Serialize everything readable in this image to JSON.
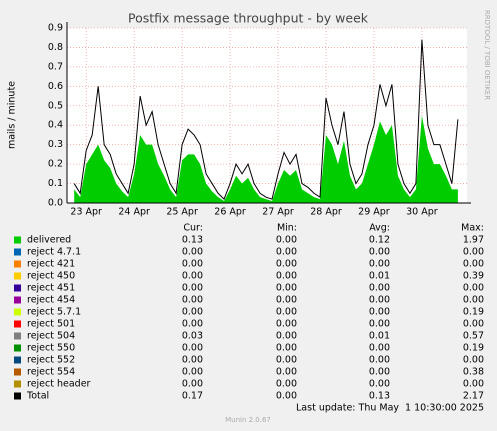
{
  "chart_data": {
    "type": "area",
    "title": "Postfix message throughput - by week",
    "y_label": "mails / minute",
    "side_note": "RRDTOOL / TOBI OETIKER",
    "footer": "Last update: Thu May  1 10:30:00 2025",
    "version": "Munin 2.0.67",
    "columns": [
      "Cur:",
      "Min:",
      "Avg:",
      "Max:"
    ],
    "grid": true,
    "xlim": [
      22.6,
      30.94
    ],
    "ylim": [
      0,
      0.9
    ],
    "xticks": [
      {
        "value": 23,
        "label": "23 Apr"
      },
      {
        "value": 24,
        "label": "24 Apr"
      },
      {
        "value": 25,
        "label": "25 Apr"
      },
      {
        "value": 26,
        "label": "26 Apr"
      },
      {
        "value": 27,
        "label": "27 Apr"
      },
      {
        "value": 28,
        "label": "28 Apr"
      },
      {
        "value": 29,
        "label": "29 Apr"
      },
      {
        "value": 30,
        "label": "30 Apr"
      }
    ],
    "yticks": [
      {
        "value": 0,
        "label": "0.0"
      },
      0.1,
      0.2,
      0.3,
      0.4,
      0.5,
      0.6,
      0.7,
      0.8,
      0.9
    ],
    "x": [
      22.75,
      22.875,
      23,
      23.125,
      23.25,
      23.375,
      23.5,
      23.625,
      23.75,
      23.875,
      24,
      24.125,
      24.25,
      24.375,
      24.5,
      24.625,
      24.75,
      24.875,
      25,
      25.125,
      25.25,
      25.375,
      25.5,
      25.625,
      25.75,
      25.875,
      26,
      26.125,
      26.25,
      26.375,
      26.5,
      26.625,
      26.75,
      26.875,
      27,
      27.125,
      27.25,
      27.375,
      27.5,
      27.625,
      27.75,
      27.875,
      28,
      28.125,
      28.25,
      28.375,
      28.5,
      28.625,
      28.75,
      28.875,
      29,
      29.125,
      29.25,
      29.375,
      29.5,
      29.625,
      29.75,
      29.875,
      30,
      30.125,
      30.25,
      30.375,
      30.5,
      30.625,
      30.75
    ],
    "series": [
      {
        "name": "delivered",
        "color": "#00cc00",
        "kind": "area",
        "stats": {
          "cur": "0.13",
          "min": "0.00",
          "avg": "0.12",
          "max": "1.97"
        },
        "values": [
          0.07,
          0.03,
          0.2,
          0.25,
          0.3,
          0.22,
          0.18,
          0.1,
          0.06,
          0.03,
          0.15,
          0.35,
          0.3,
          0.3,
          0.2,
          0.14,
          0.07,
          0.03,
          0.22,
          0.25,
          0.25,
          0.2,
          0.1,
          0.06,
          0.03,
          0.01,
          0.07,
          0.14,
          0.1,
          0.13,
          0.07,
          0.03,
          0.02,
          0.01,
          0.1,
          0.17,
          0.14,
          0.17,
          0.07,
          0.05,
          0.03,
          0.02,
          0.35,
          0.3,
          0.2,
          0.32,
          0.14,
          0.07,
          0.1,
          0.2,
          0.3,
          0.42,
          0.35,
          0.4,
          0.14,
          0.07,
          0.03,
          0.07,
          0.45,
          0.28,
          0.2,
          0.2,
          0.14,
          0.07,
          0.07
        ]
      },
      {
        "name": "Total",
        "color": "#000000",
        "kind": "line",
        "stats": {
          "cur": "0.17",
          "min": "0.00",
          "avg": "0.13",
          "max": "2.17"
        },
        "values": [
          0.1,
          0.05,
          0.27,
          0.35,
          0.6,
          0.3,
          0.25,
          0.15,
          0.1,
          0.05,
          0.2,
          0.55,
          0.4,
          0.47,
          0.3,
          0.2,
          0.1,
          0.05,
          0.3,
          0.38,
          0.35,
          0.3,
          0.15,
          0.1,
          0.05,
          0.02,
          0.1,
          0.2,
          0.15,
          0.2,
          0.1,
          0.05,
          0.03,
          0.02,
          0.15,
          0.26,
          0.2,
          0.25,
          0.1,
          0.08,
          0.05,
          0.03,
          0.54,
          0.4,
          0.3,
          0.47,
          0.2,
          0.1,
          0.15,
          0.3,
          0.4,
          0.61,
          0.5,
          0.61,
          0.2,
          0.1,
          0.05,
          0.1,
          0.84,
          0.4,
          0.3,
          0.3,
          0.2,
          0.1,
          0.43
        ]
      }
    ],
    "legend_extra": [
      {
        "name": "reject 4.7.1",
        "color": "#0066b3",
        "stats": {
          "cur": "0.00",
          "min": "0.00",
          "avg": "0.00",
          "max": "0.00"
        }
      },
      {
        "name": "reject 421",
        "color": "#ff8000",
        "stats": {
          "cur": "0.00",
          "min": "0.00",
          "avg": "0.00",
          "max": "0.00"
        }
      },
      {
        "name": "reject 450",
        "color": "#ffcc00",
        "stats": {
          "cur": "0.00",
          "min": "0.00",
          "avg": "0.01",
          "max": "0.39"
        }
      },
      {
        "name": "reject 451",
        "color": "#330099",
        "stats": {
          "cur": "0.00",
          "min": "0.00",
          "avg": "0.00",
          "max": "0.00"
        }
      },
      {
        "name": "reject 454",
        "color": "#990099",
        "stats": {
          "cur": "0.00",
          "min": "0.00",
          "avg": "0.00",
          "max": "0.00"
        }
      },
      {
        "name": "reject 5.7.1",
        "color": "#ccff00",
        "stats": {
          "cur": "0.00",
          "min": "0.00",
          "avg": "0.00",
          "max": "0.19"
        }
      },
      {
        "name": "reject 501",
        "color": "#ff0000",
        "stats": {
          "cur": "0.00",
          "min": "0.00",
          "avg": "0.00",
          "max": "0.00"
        }
      },
      {
        "name": "reject 504",
        "color": "#808080",
        "stats": {
          "cur": "0.03",
          "min": "0.00",
          "avg": "0.01",
          "max": "0.57"
        }
      },
      {
        "name": "reject 550",
        "color": "#008f00",
        "stats": {
          "cur": "0.00",
          "min": "0.00",
          "avg": "0.00",
          "max": "0.19"
        }
      },
      {
        "name": "reject 552",
        "color": "#00487d",
        "stats": {
          "cur": "0.00",
          "min": "0.00",
          "avg": "0.00",
          "max": "0.00"
        }
      },
      {
        "name": "reject 554",
        "color": "#b35a00",
        "stats": {
          "cur": "0.00",
          "min": "0.00",
          "avg": "0.00",
          "max": "0.38"
        }
      },
      {
        "name": "reject header",
        "color": "#b38f00",
        "stats": {
          "cur": "0.00",
          "min": "0.00",
          "avg": "0.00",
          "max": "0.00"
        }
      }
    ]
  }
}
